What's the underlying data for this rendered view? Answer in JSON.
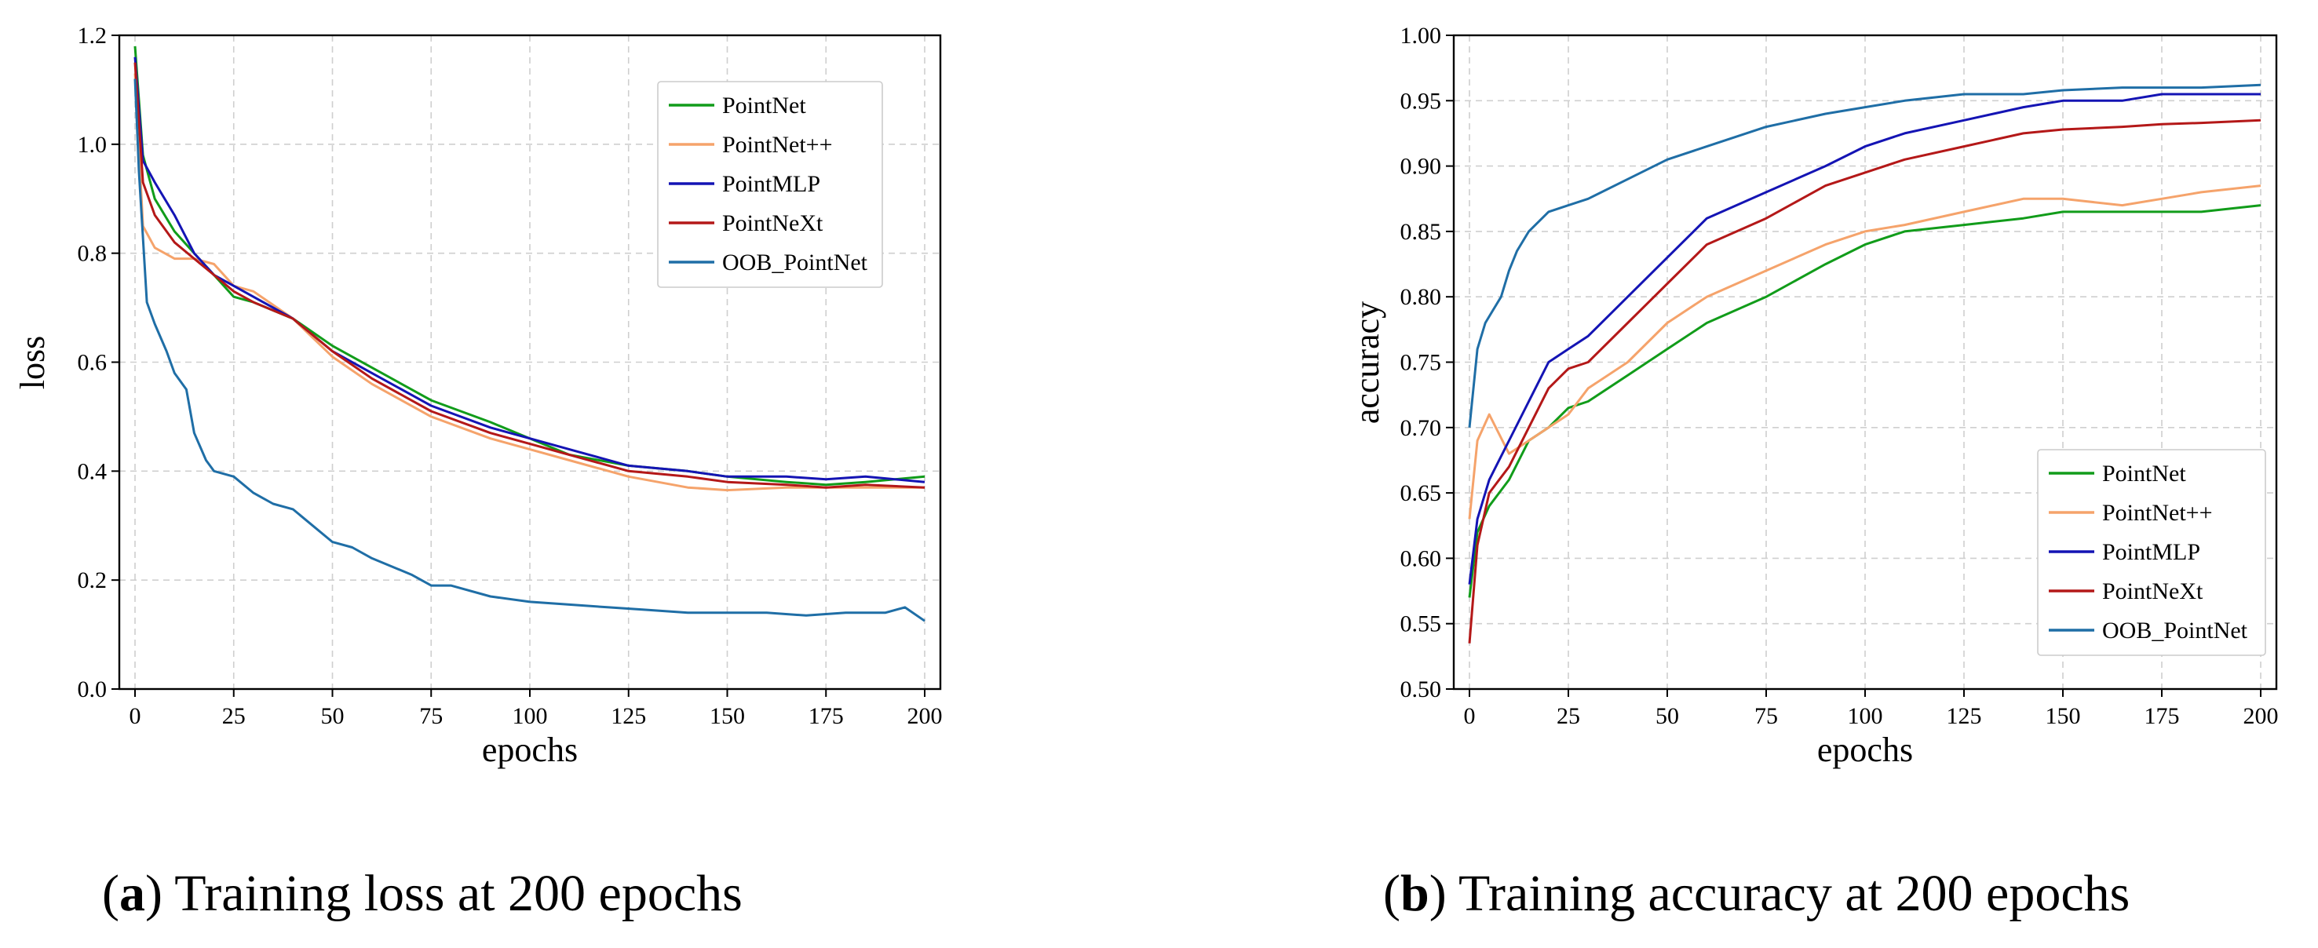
{
  "series_style": [
    {
      "name": "PointNet",
      "color": "#119c1a"
    },
    {
      "name": "PointNet++",
      "color": "#f5a36b"
    },
    {
      "name": "PointMLP",
      "color": "#1414b4"
    },
    {
      "name": "PointNeXt",
      "color": "#b41818"
    },
    {
      "name": "OOB_PointNet",
      "color": "#1f6ea6"
    }
  ],
  "captions": [
    {
      "letter": "a",
      "text": "Training loss at 200 epochs"
    },
    {
      "letter": "b",
      "text": "Training accuracy at 200 epochs"
    }
  ],
  "chart_data": [
    {
      "type": "line",
      "title": "",
      "xlabel": "epochs",
      "ylabel": "loss",
      "xlim": [
        0,
        200
      ],
      "ylim": [
        0,
        1.2
      ],
      "xticks": [
        0,
        25,
        50,
        75,
        100,
        125,
        150,
        175,
        200
      ],
      "yticks": [
        0.0,
        0.2,
        0.4,
        0.6,
        0.8,
        1.0,
        1.2
      ],
      "ytick_decimals": 1,
      "grid": true,
      "legend_position": "top-right",
      "series": [
        {
          "name": "PointNet",
          "x": [
            0,
            2,
            5,
            10,
            15,
            20,
            25,
            30,
            40,
            50,
            60,
            75,
            90,
            100,
            110,
            125,
            140,
            150,
            165,
            175,
            185,
            200
          ],
          "values": [
            1.18,
            0.98,
            0.9,
            0.84,
            0.8,
            0.76,
            0.72,
            0.71,
            0.68,
            0.63,
            0.59,
            0.53,
            0.49,
            0.46,
            0.43,
            0.41,
            0.4,
            0.39,
            0.38,
            0.375,
            0.38,
            0.39
          ]
        },
        {
          "name": "PointNet++",
          "x": [
            0,
            2,
            5,
            10,
            15,
            20,
            25,
            30,
            40,
            50,
            60,
            75,
            90,
            100,
            110,
            125,
            140,
            150,
            165,
            175,
            185,
            200
          ],
          "values": [
            1.13,
            0.85,
            0.81,
            0.79,
            0.79,
            0.78,
            0.74,
            0.73,
            0.68,
            0.61,
            0.56,
            0.5,
            0.46,
            0.44,
            0.42,
            0.39,
            0.37,
            0.365,
            0.37,
            0.37,
            0.37,
            0.37
          ]
        },
        {
          "name": "PointMLP",
          "x": [
            0,
            2,
            5,
            10,
            15,
            20,
            25,
            30,
            40,
            50,
            60,
            75,
            90,
            100,
            110,
            125,
            140,
            150,
            165,
            175,
            185,
            200
          ],
          "values": [
            1.16,
            0.97,
            0.93,
            0.87,
            0.8,
            0.76,
            0.74,
            0.72,
            0.68,
            0.62,
            0.58,
            0.52,
            0.48,
            0.46,
            0.44,
            0.41,
            0.4,
            0.39,
            0.39,
            0.385,
            0.39,
            0.38
          ]
        },
        {
          "name": "PointNeXt",
          "x": [
            0,
            2,
            5,
            10,
            15,
            20,
            25,
            30,
            40,
            50,
            60,
            75,
            90,
            100,
            110,
            125,
            140,
            150,
            165,
            175,
            185,
            200
          ],
          "values": [
            1.15,
            0.93,
            0.87,
            0.82,
            0.79,
            0.76,
            0.73,
            0.71,
            0.68,
            0.62,
            0.57,
            0.51,
            0.47,
            0.45,
            0.43,
            0.4,
            0.39,
            0.38,
            0.375,
            0.37,
            0.375,
            0.37
          ]
        },
        {
          "name": "OOB_PointNet",
          "x": [
            0,
            1,
            3,
            5,
            8,
            10,
            13,
            15,
            18,
            20,
            25,
            30,
            35,
            40,
            45,
            50,
            55,
            60,
            70,
            75,
            80,
            90,
            100,
            110,
            120,
            130,
            140,
            150,
            160,
            170,
            180,
            190,
            195,
            200
          ],
          "values": [
            1.12,
            0.95,
            0.71,
            0.67,
            0.62,
            0.58,
            0.55,
            0.47,
            0.42,
            0.4,
            0.39,
            0.36,
            0.34,
            0.33,
            0.3,
            0.27,
            0.26,
            0.24,
            0.21,
            0.19,
            0.19,
            0.17,
            0.16,
            0.155,
            0.15,
            0.145,
            0.14,
            0.14,
            0.14,
            0.135,
            0.14,
            0.14,
            0.15,
            0.125
          ]
        }
      ]
    },
    {
      "type": "line",
      "title": "",
      "xlabel": "epochs",
      "ylabel": "accuracy",
      "xlim": [
        0,
        200
      ],
      "ylim": [
        0.5,
        1.0
      ],
      "xticks": [
        0,
        25,
        50,
        75,
        100,
        125,
        150,
        175,
        200
      ],
      "yticks": [
        0.5,
        0.55,
        0.6,
        0.65,
        0.7,
        0.75,
        0.8,
        0.85,
        0.9,
        0.95,
        1.0
      ],
      "ytick_decimals": 2,
      "grid": true,
      "legend_position": "bottom-right",
      "series": [
        {
          "name": "PointNet",
          "x": [
            0,
            2,
            5,
            10,
            15,
            20,
            25,
            30,
            40,
            50,
            60,
            75,
            90,
            100,
            110,
            125,
            140,
            150,
            165,
            175,
            185,
            200
          ],
          "values": [
            0.57,
            0.62,
            0.64,
            0.66,
            0.69,
            0.7,
            0.715,
            0.72,
            0.74,
            0.76,
            0.78,
            0.8,
            0.825,
            0.84,
            0.85,
            0.855,
            0.86,
            0.865,
            0.865,
            0.865,
            0.865,
            0.87
          ]
        },
        {
          "name": "PointNet++",
          "x": [
            0,
            2,
            5,
            10,
            15,
            20,
            25,
            30,
            40,
            50,
            60,
            75,
            90,
            100,
            110,
            125,
            140,
            150,
            165,
            175,
            185,
            200
          ],
          "values": [
            0.63,
            0.69,
            0.71,
            0.68,
            0.69,
            0.7,
            0.71,
            0.73,
            0.75,
            0.78,
            0.8,
            0.82,
            0.84,
            0.85,
            0.855,
            0.865,
            0.875,
            0.875,
            0.87,
            0.875,
            0.88,
            0.885
          ]
        },
        {
          "name": "PointMLP",
          "x": [
            0,
            2,
            5,
            10,
            15,
            20,
            25,
            30,
            40,
            50,
            60,
            75,
            90,
            100,
            110,
            125,
            140,
            150,
            165,
            175,
            185,
            200
          ],
          "values": [
            0.58,
            0.63,
            0.66,
            0.69,
            0.72,
            0.75,
            0.76,
            0.77,
            0.8,
            0.83,
            0.86,
            0.88,
            0.9,
            0.915,
            0.925,
            0.935,
            0.945,
            0.95,
            0.95,
            0.955,
            0.955,
            0.955
          ]
        },
        {
          "name": "PointNeXt",
          "x": [
            0,
            2,
            5,
            10,
            15,
            20,
            25,
            30,
            40,
            50,
            60,
            75,
            90,
            100,
            110,
            125,
            140,
            150,
            165,
            175,
            185,
            200
          ],
          "values": [
            0.535,
            0.61,
            0.65,
            0.67,
            0.7,
            0.73,
            0.745,
            0.75,
            0.78,
            0.81,
            0.84,
            0.86,
            0.885,
            0.895,
            0.905,
            0.915,
            0.925,
            0.928,
            0.93,
            0.932,
            0.933,
            0.935
          ]
        },
        {
          "name": "OOB_PointNet",
          "x": [
            0,
            2,
            4,
            6,
            8,
            10,
            12,
            15,
            20,
            25,
            30,
            40,
            50,
            60,
            75,
            90,
            100,
            110,
            125,
            140,
            150,
            165,
            175,
            185,
            200
          ],
          "values": [
            0.7,
            0.76,
            0.78,
            0.79,
            0.8,
            0.82,
            0.835,
            0.85,
            0.865,
            0.87,
            0.875,
            0.89,
            0.905,
            0.915,
            0.93,
            0.94,
            0.945,
            0.95,
            0.955,
            0.955,
            0.958,
            0.96,
            0.96,
            0.96,
            0.962
          ]
        }
      ]
    }
  ]
}
